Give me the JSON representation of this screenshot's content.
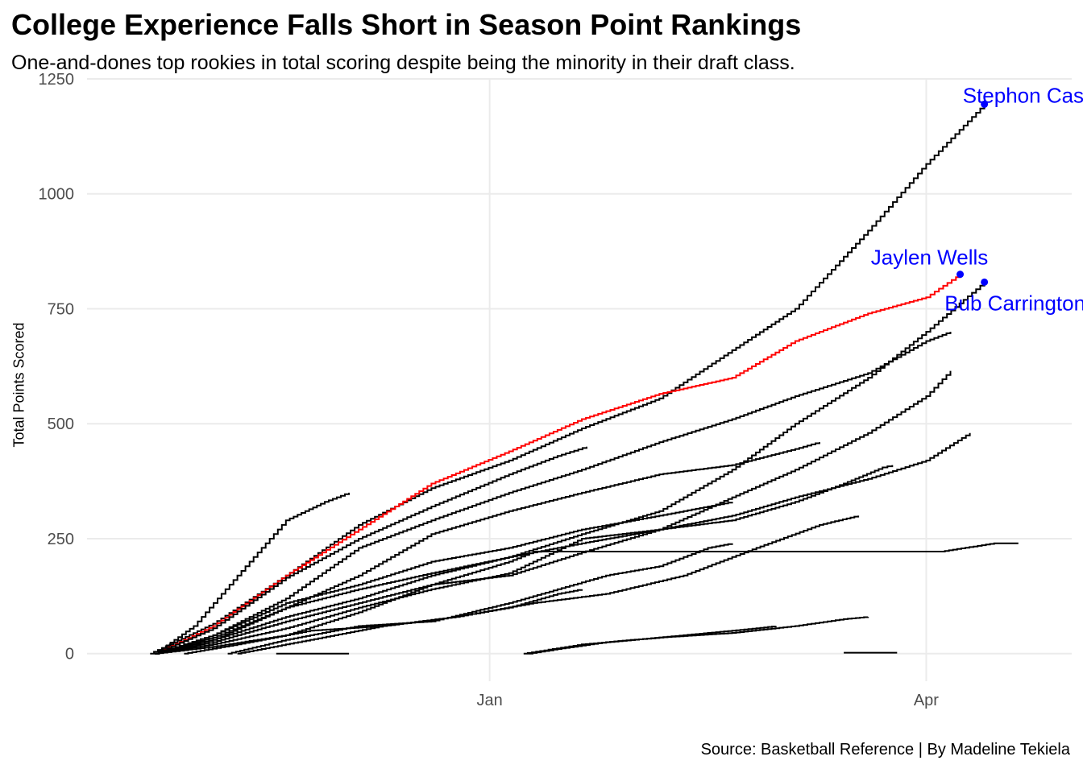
{
  "title": "College Experience Falls Short in Season Point Rankings",
  "subtitle": "One-and-dones top rookies in total scoring despite being the minority in their draft class.",
  "caption": "Source: Basketball Reference | By Madeline Tekiela",
  "colors": {
    "highlight": "#ff0000",
    "default": "#000000",
    "annotation": "#0000ff",
    "grid": "#ebebeb"
  },
  "chart_data": {
    "type": "line",
    "step": true,
    "xlabel": "",
    "ylabel": "Total Points Scored",
    "xlim": [
      "2024-10-10",
      "2025-05-01"
    ],
    "ylim": [
      -60,
      1250
    ],
    "y_ticks": [
      0,
      250,
      500,
      750,
      1000,
      1250
    ],
    "x_ticks": [
      {
        "date": "2025-01-01",
        "label": "Jan"
      },
      {
        "date": "2025-04-01",
        "label": "Apr"
      }
    ],
    "grid": true,
    "legend": "none",
    "annotations": [
      {
        "label": "Stephon Castle",
        "date": "2025-04-13",
        "value": 1195
      },
      {
        "label": "Jaylen Wells",
        "date": "2025-04-08",
        "value": 825
      },
      {
        "label": "Bub Carrington",
        "date": "2025-04-13",
        "value": 808
      }
    ],
    "series": [
      {
        "highlight": false,
        "points": [
          [
            "2024-10-23",
            0
          ],
          [
            "2024-11-05",
            65
          ],
          [
            "2024-11-20",
            170
          ],
          [
            "2024-12-05",
            280
          ],
          [
            "2024-12-20",
            360
          ],
          [
            "2025-01-05",
            420
          ],
          [
            "2025-01-20",
            490
          ],
          [
            "2025-02-05",
            555
          ],
          [
            "2025-02-20",
            660
          ],
          [
            "2025-03-05",
            750
          ],
          [
            "2025-03-20",
            920
          ],
          [
            "2025-04-01",
            1065
          ],
          [
            "2025-04-13",
            1195
          ]
        ]
      },
      {
        "highlight": true,
        "points": [
          [
            "2024-10-24",
            0
          ],
          [
            "2024-11-05",
            60
          ],
          [
            "2024-11-20",
            170
          ],
          [
            "2024-12-05",
            270
          ],
          [
            "2024-12-20",
            370
          ],
          [
            "2025-01-05",
            440
          ],
          [
            "2025-01-20",
            510
          ],
          [
            "2025-02-05",
            565
          ],
          [
            "2025-02-20",
            600
          ],
          [
            "2025-03-05",
            680
          ],
          [
            "2025-03-20",
            740
          ],
          [
            "2025-04-01",
            775
          ],
          [
            "2025-04-08",
            825
          ]
        ]
      },
      {
        "highlight": false,
        "points": [
          [
            "2024-10-24",
            0
          ],
          [
            "2024-11-05",
            30
          ],
          [
            "2024-11-20",
            80
          ],
          [
            "2024-12-05",
            120
          ],
          [
            "2024-12-20",
            170
          ],
          [
            "2025-01-05",
            210
          ],
          [
            "2025-01-20",
            260
          ],
          [
            "2025-02-05",
            310
          ],
          [
            "2025-02-20",
            400
          ],
          [
            "2025-03-05",
            500
          ],
          [
            "2025-03-20",
            600
          ],
          [
            "2025-04-01",
            700
          ],
          [
            "2025-04-13",
            808
          ]
        ]
      },
      {
        "highlight": false,
        "points": [
          [
            "2024-10-24",
            0
          ],
          [
            "2024-11-05",
            15
          ],
          [
            "2024-11-20",
            40
          ],
          [
            "2024-12-05",
            90
          ],
          [
            "2024-12-20",
            150
          ],
          [
            "2025-01-05",
            170
          ],
          [
            "2025-01-20",
            220
          ],
          [
            "2025-02-05",
            270
          ],
          [
            "2025-02-20",
            340
          ],
          [
            "2025-03-05",
            400
          ],
          [
            "2025-03-20",
            480
          ],
          [
            "2025-04-01",
            560
          ],
          [
            "2025-04-06",
            615
          ]
        ]
      },
      {
        "highlight": false,
        "points": [
          [
            "2024-10-24",
            0
          ],
          [
            "2024-11-01",
            60
          ],
          [
            "2024-11-10",
            170
          ],
          [
            "2024-11-20",
            290
          ],
          [
            "2024-11-28",
            330
          ],
          [
            "2024-12-03",
            350
          ]
        ]
      },
      {
        "highlight": false,
        "points": [
          [
            "2024-10-24",
            0
          ],
          [
            "2024-11-05",
            55
          ],
          [
            "2024-11-20",
            165
          ],
          [
            "2024-12-05",
            250
          ],
          [
            "2024-12-20",
            320
          ],
          [
            "2025-01-05",
            390
          ],
          [
            "2025-01-15",
            430
          ],
          [
            "2025-01-21",
            450
          ]
        ]
      },
      {
        "highlight": false,
        "points": [
          [
            "2024-10-24",
            0
          ],
          [
            "2024-11-05",
            40
          ],
          [
            "2024-11-20",
            120
          ],
          [
            "2024-12-05",
            230
          ],
          [
            "2024-12-20",
            290
          ],
          [
            "2025-01-05",
            350
          ],
          [
            "2025-01-20",
            400
          ],
          [
            "2025-02-05",
            460
          ],
          [
            "2025-02-20",
            510
          ],
          [
            "2025-03-05",
            560
          ],
          [
            "2025-03-20",
            610
          ],
          [
            "2025-04-01",
            680
          ],
          [
            "2025-04-06",
            700
          ]
        ]
      },
      {
        "highlight": false,
        "points": [
          [
            "2024-10-24",
            0
          ],
          [
            "2024-11-05",
            35
          ],
          [
            "2024-11-20",
            100
          ],
          [
            "2024-12-05",
            170
          ],
          [
            "2024-12-20",
            260
          ],
          [
            "2025-01-05",
            310
          ],
          [
            "2025-01-20",
            350
          ],
          [
            "2025-02-05",
            390
          ],
          [
            "2025-02-20",
            410
          ],
          [
            "2025-03-05",
            445
          ],
          [
            "2025-03-10",
            460
          ]
        ]
      },
      {
        "highlight": false,
        "points": [
          [
            "2024-10-24",
            0
          ],
          [
            "2024-11-05",
            40
          ],
          [
            "2024-11-20",
            110
          ],
          [
            "2024-12-05",
            150
          ],
          [
            "2024-12-20",
            200
          ],
          [
            "2025-01-05",
            230
          ],
          [
            "2025-01-20",
            270
          ],
          [
            "2025-02-05",
            300
          ],
          [
            "2025-02-15",
            320
          ],
          [
            "2025-02-20",
            330
          ]
        ]
      },
      {
        "highlight": false,
        "points": [
          [
            "2024-10-24",
            0
          ],
          [
            "2024-11-05",
            30
          ],
          [
            "2024-11-20",
            100
          ],
          [
            "2024-12-05",
            140
          ],
          [
            "2024-12-20",
            175
          ],
          [
            "2025-01-05",
            210
          ],
          [
            "2025-01-20",
            240
          ],
          [
            "2025-02-05",
            270
          ],
          [
            "2025-02-20",
            300
          ],
          [
            "2025-03-05",
            340
          ],
          [
            "2025-03-20",
            380
          ],
          [
            "2025-04-01",
            420
          ],
          [
            "2025-04-10",
            480
          ]
        ]
      },
      {
        "highlight": false,
        "points": [
          [
            "2024-10-24",
            0
          ],
          [
            "2024-11-05",
            25
          ],
          [
            "2024-11-20",
            70
          ],
          [
            "2024-12-05",
            110
          ],
          [
            "2024-12-20",
            150
          ],
          [
            "2025-01-05",
            200
          ],
          [
            "2025-01-10",
            222
          ],
          [
            "2025-04-04",
            222
          ],
          [
            "2025-04-15",
            240
          ],
          [
            "2025-04-20",
            240
          ]
        ]
      },
      {
        "highlight": false,
        "points": [
          [
            "2024-10-24",
            0
          ],
          [
            "2024-11-05",
            20
          ],
          [
            "2024-11-20",
            55
          ],
          [
            "2024-12-05",
            100
          ],
          [
            "2024-12-20",
            140
          ],
          [
            "2025-01-05",
            175
          ],
          [
            "2025-01-20",
            250
          ],
          [
            "2025-02-05",
            270
          ],
          [
            "2025-02-20",
            290
          ],
          [
            "2025-03-05",
            330
          ],
          [
            "2025-03-15",
            370
          ],
          [
            "2025-03-23",
            405
          ],
          [
            "2025-03-25",
            410
          ]
        ]
      },
      {
        "highlight": false,
        "points": [
          [
            "2024-10-30",
            0
          ],
          [
            "2024-11-10",
            20
          ],
          [
            "2024-11-25",
            50
          ],
          [
            "2024-12-10",
            60
          ],
          [
            "2024-12-25",
            80
          ],
          [
            "2025-01-10",
            110
          ],
          [
            "2025-01-25",
            130
          ],
          [
            "2025-02-10",
            170
          ],
          [
            "2025-02-25",
            230
          ],
          [
            "2025-03-10",
            280
          ],
          [
            "2025-03-18",
            300
          ]
        ]
      },
      {
        "highlight": false,
        "points": [
          [
            "2024-11-08",
            0
          ],
          [
            "2024-11-20",
            30
          ],
          [
            "2024-12-05",
            60
          ],
          [
            "2024-12-20",
            70
          ],
          [
            "2025-01-05",
            110
          ],
          [
            "2025-01-15",
            140
          ],
          [
            "2025-01-25",
            170
          ],
          [
            "2025-02-05",
            190
          ],
          [
            "2025-02-15",
            230
          ],
          [
            "2025-02-20",
            240
          ]
        ]
      },
      {
        "highlight": false,
        "points": [
          [
            "2024-11-10",
            0
          ],
          [
            "2024-11-25",
            30
          ],
          [
            "2024-12-10",
            60
          ],
          [
            "2024-12-25",
            80
          ],
          [
            "2025-01-05",
            100
          ],
          [
            "2025-01-15",
            130
          ],
          [
            "2025-01-20",
            140
          ]
        ]
      },
      {
        "highlight": false,
        "points": [
          [
            "2025-01-08",
            0
          ],
          [
            "2025-01-20",
            20
          ],
          [
            "2025-02-05",
            35
          ],
          [
            "2025-02-20",
            45
          ],
          [
            "2025-03-05",
            60
          ],
          [
            "2025-03-15",
            75
          ],
          [
            "2025-03-20",
            80
          ]
        ]
      },
      {
        "highlight": false,
        "points": [
          [
            "2025-01-09",
            0
          ],
          [
            "2025-01-15",
            10
          ],
          [
            "2025-01-25",
            25
          ],
          [
            "2025-02-05",
            35
          ],
          [
            "2025-02-15",
            45
          ],
          [
            "2025-02-25",
            55
          ],
          [
            "2025-03-01",
            60
          ]
        ]
      },
      {
        "highlight": false,
        "points": [
          [
            "2024-11-18",
            0
          ],
          [
            "2024-12-03",
            0
          ]
        ]
      },
      {
        "highlight": false,
        "points": [
          [
            "2025-03-15",
            2
          ],
          [
            "2025-03-26",
            2
          ]
        ]
      }
    ]
  }
}
